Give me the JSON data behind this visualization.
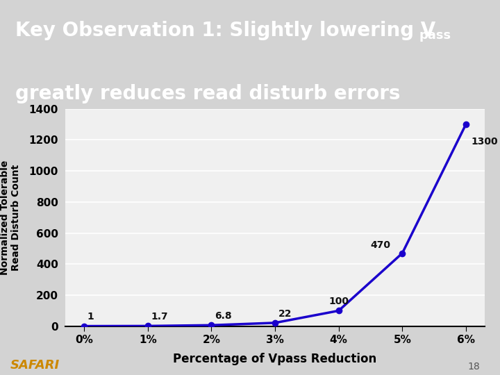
{
  "x_values": [
    0,
    1,
    2,
    3,
    4,
    5,
    6
  ],
  "y_values": [
    1,
    1.7,
    6.8,
    22,
    100,
    470,
    1300
  ],
  "x_tick_labels": [
    "0%",
    "1%",
    "2%",
    "3%",
    "4%",
    "5%",
    "6%"
  ],
  "point_labels": [
    "1",
    "1.7",
    "6.8",
    "22",
    "100",
    "470",
    "1300"
  ],
  "ylabel_line1": "Normalized Tolerable",
  "ylabel_line2": "Read Disturb Count",
  "xlabel": "Percentage of Vpass Reduction",
  "title_line1": "Key Observation 1: Slightly lowering V",
  "title_subscript": "pass",
  "title_line2": "greatly reduces read disturb errors",
  "title_bg_color": "#1a00cc",
  "title_text_color": "#ffffff",
  "line_color": "#1a00cc",
  "marker_color": "#1a00cc",
  "bg_color": "#d3d3d3",
  "plot_bg_color": "#f0f0f0",
  "ylim": [
    0,
    1400
  ],
  "yticks": [
    0,
    200,
    400,
    600,
    800,
    1000,
    1200,
    1400
  ],
  "safari_text": "SAFARI",
  "safari_color": "#cc8800",
  "page_number": "18",
  "grid_color": "#ffffff",
  "grid_linewidth": 1.2
}
